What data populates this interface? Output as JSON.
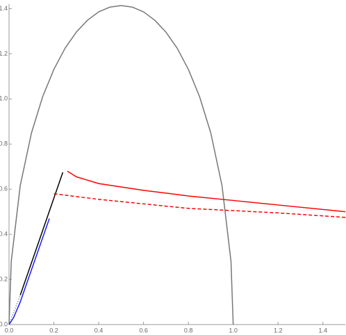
{
  "chart_data": {
    "type": "line",
    "xlim": [
      0,
      1.5
    ],
    "ylim": [
      0,
      1.42
    ],
    "xticks": [
      {
        "value": 0,
        "label": "0.0"
      },
      {
        "value": 0.2,
        "label": "0.2"
      },
      {
        "value": 0.4,
        "label": "0.4"
      },
      {
        "value": 0.6,
        "label": "0.6"
      },
      {
        "value": 0.8,
        "label": "0.8"
      },
      {
        "value": 1.0,
        "label": "1.0"
      },
      {
        "value": 1.2,
        "label": "1.2"
      },
      {
        "value": 1.4,
        "label": "1.4"
      }
    ],
    "yticks": [
      {
        "value": 0,
        "label": "0.0"
      },
      {
        "value": 0.2,
        "label": "0.2"
      },
      {
        "value": 0.4,
        "label": "0.4"
      },
      {
        "value": 0.6,
        "label": "0.6"
      },
      {
        "value": 0.8,
        "label": "0.8"
      },
      {
        "value": 1.0,
        "label": "1.0"
      },
      {
        "value": 1.2,
        "label": "1.2"
      },
      {
        "value": 1.4,
        "label": "1.4"
      }
    ],
    "series": [
      {
        "color": "#777777",
        "dash": "solid",
        "x": [
          0,
          0.01,
          0.05,
          0.1,
          0.15,
          0.2,
          0.25,
          0.3,
          0.35,
          0.4,
          0.45,
          0.5,
          0.55,
          0.6,
          0.65,
          0.7,
          0.75,
          0.8,
          0.85,
          0.9,
          0.95,
          0.99,
          1.0
        ],
        "values": [
          0,
          0.281,
          0.616,
          0.849,
          1.01,
          1.131,
          1.225,
          1.296,
          1.349,
          1.386,
          1.407,
          1.414,
          1.407,
          1.386,
          1.349,
          1.296,
          1.225,
          1.131,
          1.01,
          0.849,
          0.616,
          0.281,
          0
        ]
      },
      {
        "color": "#999999",
        "dash": "dotted",
        "x": [
          0,
          0.05
        ],
        "values": [
          0,
          0.13
        ]
      },
      {
        "color": "#000000",
        "dash": "solid",
        "x": [
          0.05,
          0.24
        ],
        "values": [
          0.13,
          0.675
        ]
      },
      {
        "color": "#1a1aff",
        "dash": "solid",
        "x": [
          0,
          0.02,
          0.05,
          0.18
        ],
        "values": [
          0,
          0.03,
          0.1,
          0.47
        ]
      },
      {
        "color": "#ff0000",
        "dash": "dashed",
        "x": [
          0.2,
          0.4,
          0.6,
          0.8,
          1.0,
          1.2,
          1.5
        ],
        "values": [
          0.58,
          0.555,
          0.535,
          0.515,
          0.505,
          0.495,
          0.475
        ]
      },
      {
        "color": "#ff0000",
        "dash": "solid",
        "x": [
          0.26,
          0.3,
          0.4,
          0.6,
          0.8,
          1.0,
          1.2,
          1.5
        ],
        "values": [
          0.68,
          0.655,
          0.625,
          0.595,
          0.57,
          0.55,
          0.53,
          0.5
        ]
      }
    ]
  }
}
